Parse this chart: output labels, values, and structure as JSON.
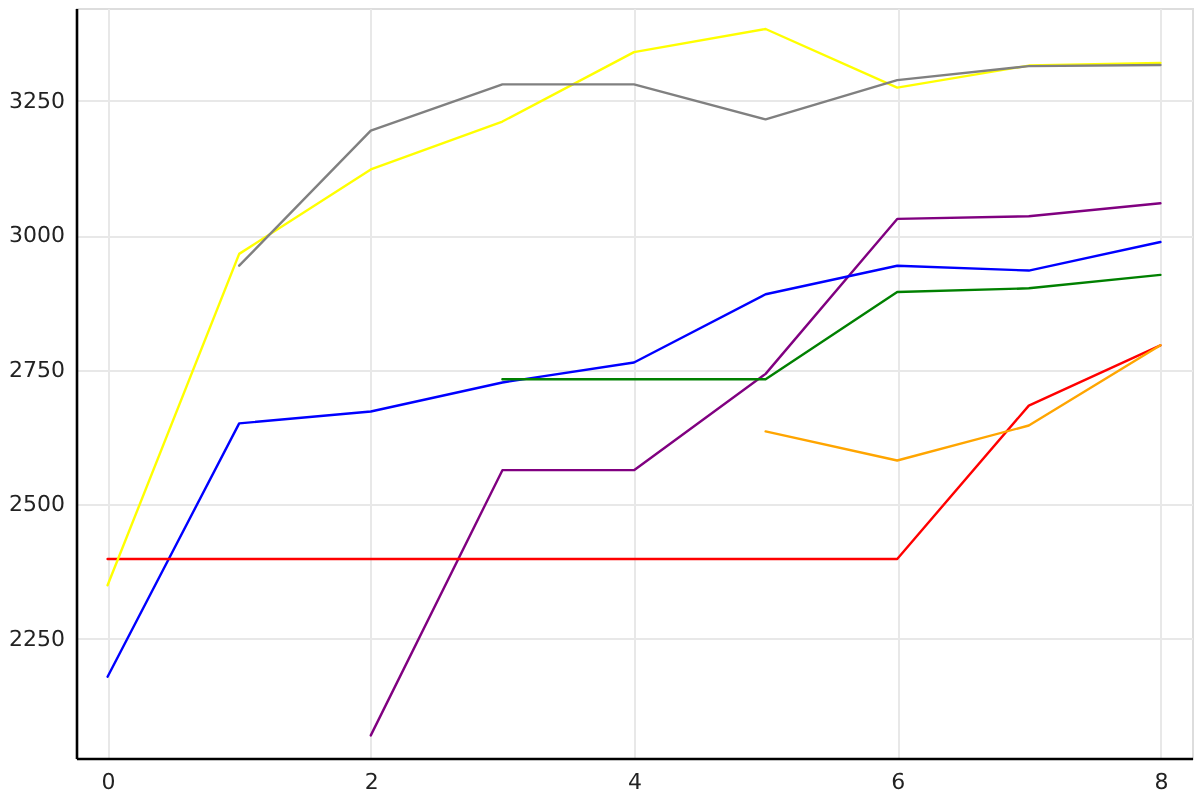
{
  "chart_data": {
    "type": "line",
    "x": [
      0,
      1,
      2,
      3,
      4,
      5,
      6,
      7,
      8
    ],
    "xlim": [
      -0.24,
      8.24
    ],
    "xticks": [
      0,
      2,
      4,
      6,
      8
    ],
    "ylim": [
      2028,
      3422
    ],
    "yticks": [
      2250,
      2500,
      2750,
      3000,
      3250
    ],
    "grid": true,
    "series": [
      {
        "color": "#800080",
        "values": [
          null,
          null,
          2070,
          2563,
          2563,
          2742,
          3030,
          3035,
          3059
        ]
      },
      {
        "color": "#0000ff",
        "values": [
          2179,
          2650,
          2672,
          2726,
          2763,
          2890,
          2943,
          2934,
          2987
        ]
      },
      {
        "color": "#008000",
        "values": [
          null,
          null,
          null,
          2732,
          2732,
          2732,
          2894,
          2901,
          2926
        ]
      },
      {
        "color": "#ff0000",
        "values": [
          2398,
          2398,
          2398,
          2398,
          2398,
          2398,
          2398,
          2683,
          2795
        ]
      },
      {
        "color": "#ffa500",
        "values": [
          null,
          null,
          null,
          null,
          null,
          2635,
          2581,
          2646,
          2795
        ]
      },
      {
        "color": "#ffff00",
        "values": [
          2349,
          2965,
          3122,
          3211,
          3340,
          3383,
          3274,
          3315,
          3320
        ]
      },
      {
        "color": "#808080",
        "values": [
          null,
          2943,
          3194,
          3280,
          3280,
          3215,
          3288,
          3314,
          3316
        ]
      }
    ]
  }
}
